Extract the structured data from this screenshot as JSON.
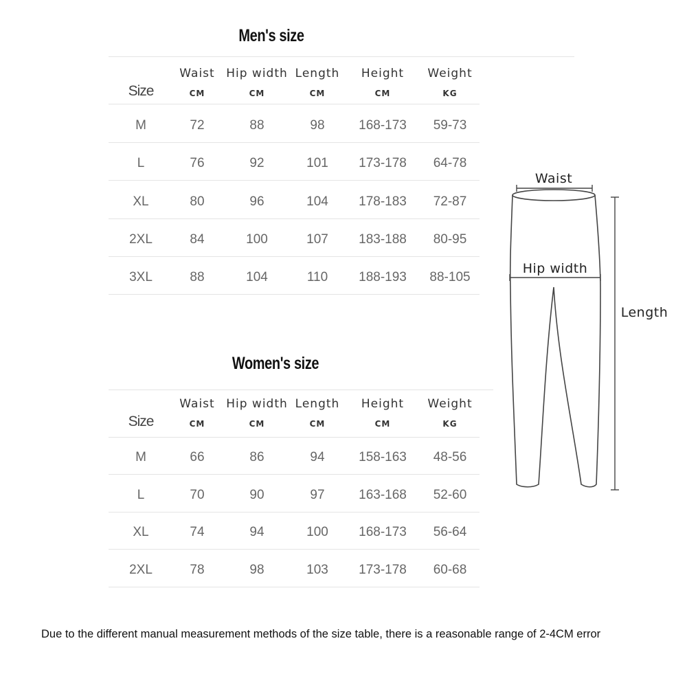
{
  "mens": {
    "title": "Men's size",
    "headers": [
      {
        "label": "Size",
        "unit": ""
      },
      {
        "label": "Waist",
        "unit": "CM"
      },
      {
        "label": "Hip width",
        "unit": "CM"
      },
      {
        "label": "Length",
        "unit": "CM"
      },
      {
        "label": "Height",
        "unit": "CM"
      },
      {
        "label": "Weight",
        "unit": "KG"
      }
    ],
    "rows": [
      [
        "M",
        "72",
        "88",
        "98",
        "168-173",
        "59-73"
      ],
      [
        "L",
        "76",
        "92",
        "101",
        "173-178",
        "64-78"
      ],
      [
        "XL",
        "80",
        "96",
        "104",
        "178-183",
        "72-87"
      ],
      [
        "2XL",
        "84",
        "100",
        "107",
        "183-188",
        "80-95"
      ],
      [
        "3XL",
        "88",
        "104",
        "110",
        "188-193",
        "88-105"
      ]
    ]
  },
  "womens": {
    "title": "Women's size",
    "headers": [
      {
        "label": "Size",
        "unit": ""
      },
      {
        "label": "Waist",
        "unit": "CM"
      },
      {
        "label": "Hip width",
        "unit": "CM"
      },
      {
        "label": "Length",
        "unit": "CM"
      },
      {
        "label": "Height",
        "unit": "CM"
      },
      {
        "label": "Weight",
        "unit": "KG"
      }
    ],
    "rows": [
      [
        "M",
        "66",
        "86",
        "94",
        "158-163",
        "48-56"
      ],
      [
        "L",
        "70",
        "90",
        "97",
        "163-168",
        "52-60"
      ],
      [
        "XL",
        "74",
        "94",
        "100",
        "168-173",
        "56-64"
      ],
      [
        "2XL",
        "78",
        "98",
        "103",
        "173-178",
        "60-68"
      ]
    ]
  },
  "diagram": {
    "waist_label": "Waist",
    "hip_label": "Hip width",
    "length_label": "Length"
  },
  "note": "Due to the different manual measurement methods of the size table, there is a reasonable range of 2-4CM error"
}
